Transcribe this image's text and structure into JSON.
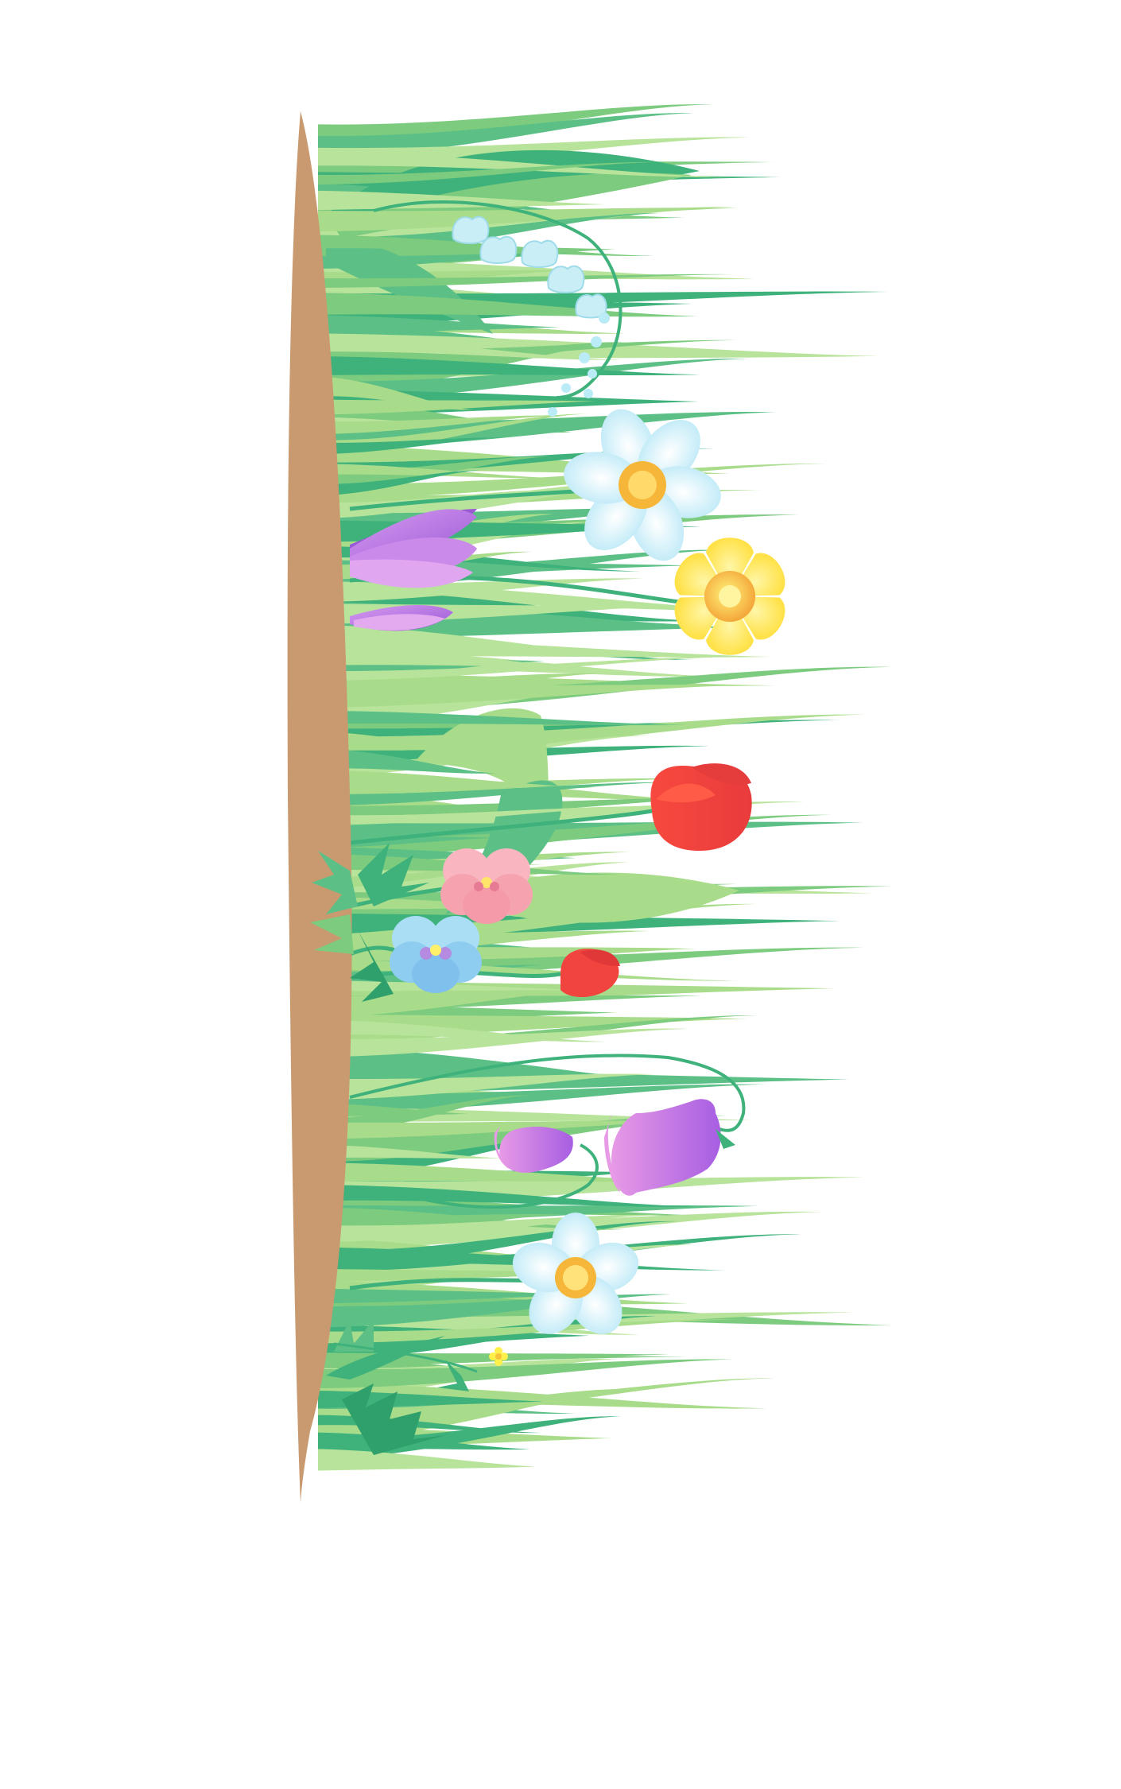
{
  "illustration": {
    "subject": "spring-flower-border",
    "orientation": "vertical",
    "colors": {
      "background": "#ffffff",
      "soil": "#c99a70",
      "grass_light": "#a8dc8a",
      "grass_mid": "#7ccb7e",
      "grass_dark": "#3fb27c",
      "crocus": "#b46ee0",
      "daffodil_yellow": "#ffe35a",
      "daffodil_center": "#f6b63a",
      "narcissus_blue": "#d2f0fb",
      "tulip_red": "#f2443e",
      "pansy_pink": "#f7a9b3",
      "pansy_blue": "#9ed6f3",
      "bellflower": "#c77ae6",
      "lily_of_valley": "#c9eef6",
      "buttercup": "#fff04a"
    },
    "flowers": [
      {
        "name": "lily-of-the-valley"
      },
      {
        "name": "narcissus-blue"
      },
      {
        "name": "crocus-large"
      },
      {
        "name": "crocus-bud"
      },
      {
        "name": "daffodil-yellow"
      },
      {
        "name": "tulip-red-large"
      },
      {
        "name": "tulip-red-small"
      },
      {
        "name": "pansy-pink"
      },
      {
        "name": "pansy-blue"
      },
      {
        "name": "bellflower-large"
      },
      {
        "name": "bellflower-small"
      },
      {
        "name": "narcissus-white"
      },
      {
        "name": "buttercup"
      }
    ]
  }
}
